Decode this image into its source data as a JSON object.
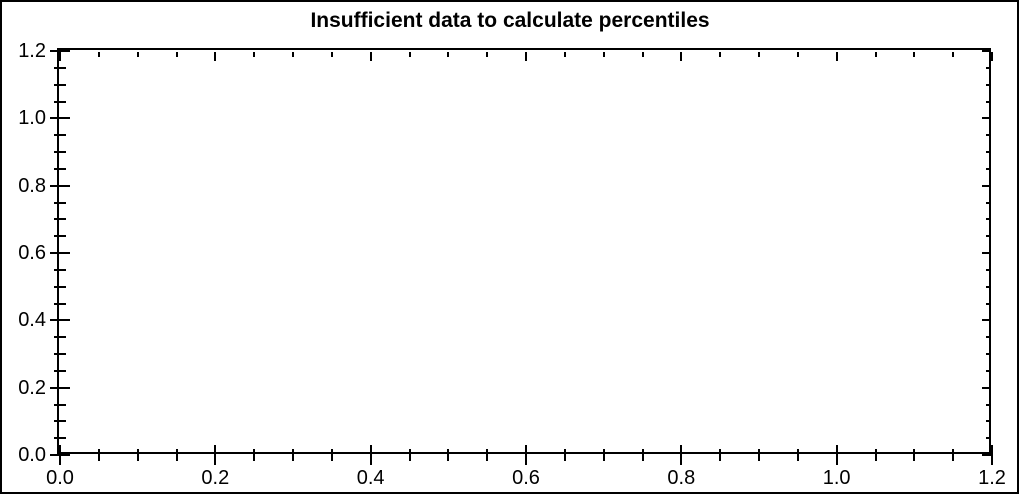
{
  "window": {
    "background_color": "#ffffff",
    "frame_border_color": "#000000"
  },
  "chart_data": {
    "type": "line",
    "title": "Insufficient data to calculate percentiles",
    "xlabel": "",
    "ylabel": "",
    "xlim": [
      0.0,
      1.2
    ],
    "ylim": [
      0.0,
      1.2
    ],
    "x_major_ticks": [
      0.0,
      0.2,
      0.4,
      0.6,
      0.8,
      1.0,
      1.2
    ],
    "y_major_ticks": [
      0.0,
      0.2,
      0.4,
      0.6,
      0.8,
      1.0,
      1.2
    ],
    "x_tick_labels": [
      "0.0",
      "0.2",
      "0.4",
      "0.6",
      "0.8",
      "1.0",
      "1.2"
    ],
    "y_tick_labels": [
      "0.0",
      "0.2",
      "0.4",
      "0.6",
      "0.8",
      "1.0",
      "1.2"
    ],
    "minor_tick_step": 0.05,
    "grid": false,
    "legend": null,
    "series": [],
    "axis_color": "#000000",
    "text_color": "#000000",
    "plot_background": "#ffffff"
  }
}
